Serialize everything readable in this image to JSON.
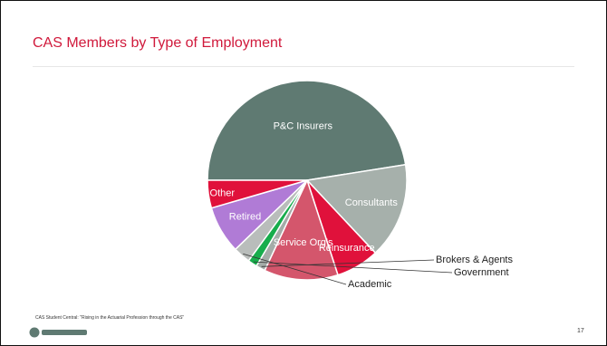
{
  "slide": {
    "title": "CAS Members by Type of Employment",
    "footer": "CAS Student Central: \"Rising in the Actuarial Profession through the CAS\"",
    "page_number": "17"
  },
  "chart_data": {
    "type": "pie",
    "title": "CAS Members by Type of Employment",
    "start_angle_deg": 180,
    "direction": "clockwise",
    "label_color": "#ffffff",
    "outside_label_color": "#222222",
    "slices": [
      {
        "label": "P&C Insurers",
        "value": 47.5,
        "color": "#5f7a72",
        "label_position": "inside"
      },
      {
        "label": "Consultants",
        "value": 15.5,
        "color": "#a6b0ab",
        "label_position": "inside"
      },
      {
        "label": "Reinsurance",
        "value": 7.0,
        "color": "#e0113b",
        "label_position": "inside"
      },
      {
        "label": "Service Org's",
        "value": 12.0,
        "color": "#d4566c",
        "label_position": "inside"
      },
      {
        "label": "Brokers & Agents",
        "value": 1.5,
        "color": "#a4aca8",
        "label_position": "outside"
      },
      {
        "label": "Government",
        "value": 1.5,
        "color": "#17ad4c",
        "label_position": "outside"
      },
      {
        "label": "Academic",
        "value": 2.8,
        "color": "#b9bdbb",
        "label_position": "outside"
      },
      {
        "label": "Retired",
        "value": 7.7,
        "color": "#b07bd6",
        "label_position": "inside"
      },
      {
        "label": "Other",
        "value": 4.5,
        "color": "#e0113b",
        "label_position": "inside"
      }
    ]
  }
}
